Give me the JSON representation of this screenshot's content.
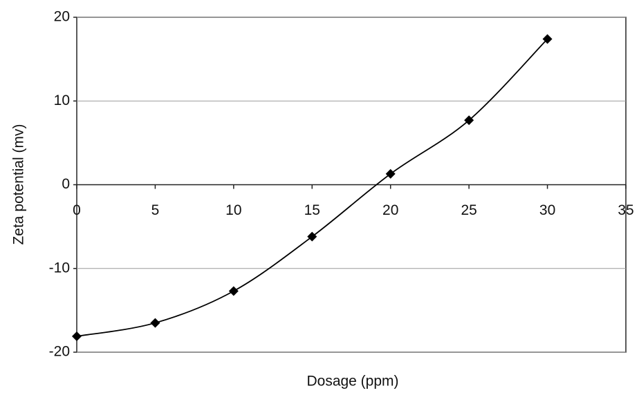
{
  "chart_data": {
    "type": "line",
    "x_label": "Dosage (ppm)",
    "y_label": "Zeta potential (mv)",
    "x": [
      0,
      5,
      10,
      15,
      20,
      25,
      30
    ],
    "values": [
      -18.1,
      -16.5,
      -12.7,
      -6.2,
      1.3,
      7.7,
      17.4
    ],
    "color": "#000000",
    "xlim": [
      0,
      35
    ],
    "xticks": [
      0,
      5,
      10,
      15,
      20,
      25,
      30,
      35
    ],
    "ylim": [
      -20,
      20
    ],
    "yticks": [
      -20,
      -10,
      0,
      10,
      20
    ],
    "grid": true,
    "marker": "diamond",
    "smooth": true
  }
}
